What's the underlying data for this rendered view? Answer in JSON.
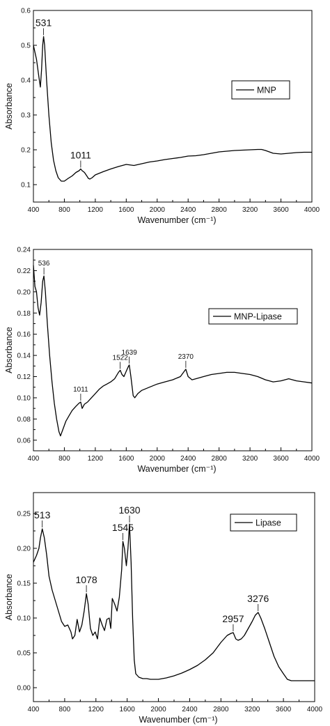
{
  "chart_data": [
    {
      "type": "line",
      "xlabel": "Wavenumber (cm⁻¹)",
      "ylabel": "Absorbance",
      "xlim": [
        400,
        4000
      ],
      "ylim": [
        0.05,
        0.6
      ],
      "x_ticks": [
        400,
        800,
        1200,
        1600,
        2000,
        2400,
        2800,
        3200,
        3600,
        4000
      ],
      "y_ticks": [
        0.1,
        0.2,
        0.3,
        0.4,
        0.5,
        0.6
      ],
      "y_tick_labels": [
        "0.1",
        "0.2",
        "0.3",
        "0.4",
        "0.5",
        "0.6"
      ],
      "legend": "right",
      "series": [
        {
          "name": "MNP",
          "color": "#000000",
          "points": [
            [
              400,
              0.5
            ],
            [
              440,
              0.46
            ],
            [
              470,
              0.41
            ],
            [
              490,
              0.38
            ],
            [
              505,
              0.43
            ],
            [
              520,
              0.5
            ],
            [
              531,
              0.525
            ],
            [
              545,
              0.5
            ],
            [
              570,
              0.4
            ],
            [
              600,
              0.3
            ],
            [
              630,
              0.22
            ],
            [
              660,
              0.17
            ],
            [
              690,
              0.14
            ],
            [
              720,
              0.12
            ],
            [
              760,
              0.11
            ],
            [
              800,
              0.11
            ],
            [
              850,
              0.118
            ],
            [
              900,
              0.125
            ],
            [
              950,
              0.135
            ],
            [
              990,
              0.14
            ],
            [
              1011,
              0.145
            ],
            [
              1030,
              0.14
            ],
            [
              1060,
              0.135
            ],
            [
              1090,
              0.125
            ],
            [
              1110,
              0.118
            ],
            [
              1130,
              0.116
            ],
            [
              1160,
              0.12
            ],
            [
              1200,
              0.128
            ],
            [
              1300,
              0.137
            ],
            [
              1400,
              0.145
            ],
            [
              1500,
              0.152
            ],
            [
              1600,
              0.158
            ],
            [
              1700,
              0.155
            ],
            [
              1800,
              0.16
            ],
            [
              1900,
              0.165
            ],
            [
              2000,
              0.168
            ],
            [
              2100,
              0.172
            ],
            [
              2200,
              0.175
            ],
            [
              2300,
              0.178
            ],
            [
              2400,
              0.182
            ],
            [
              2500,
              0.183
            ],
            [
              2600,
              0.186
            ],
            [
              2700,
              0.19
            ],
            [
              2800,
              0.194
            ],
            [
              2900,
              0.196
            ],
            [
              3000,
              0.198
            ],
            [
              3100,
              0.199
            ],
            [
              3200,
              0.2
            ],
            [
              3300,
              0.201
            ],
            [
              3350,
              0.201
            ],
            [
              3400,
              0.198
            ],
            [
              3500,
              0.19
            ],
            [
              3600,
              0.188
            ],
            [
              3700,
              0.19
            ],
            [
              3800,
              0.192
            ],
            [
              3900,
              0.193
            ],
            [
              4000,
              0.193
            ]
          ]
        }
      ],
      "annotations": [
        {
          "x": 531,
          "y": 0.525,
          "text": "531"
        },
        {
          "x": 1011,
          "y": 0.145,
          "text": "1011"
        }
      ]
    },
    {
      "type": "line",
      "xlabel": "Wavenumber (cm⁻¹)",
      "ylabel": "Absorbance",
      "xlim": [
        400,
        4000
      ],
      "ylim": [
        0.05,
        0.24
      ],
      "x_ticks": [
        400,
        800,
        1200,
        1600,
        2000,
        2400,
        2800,
        3200,
        3600,
        4000
      ],
      "y_ticks": [
        0.06,
        0.08,
        0.1,
        0.12,
        0.14,
        0.16,
        0.18,
        0.2,
        0.22,
        0.24
      ],
      "y_tick_labels": [
        "0.06",
        "0.08",
        "0.10",
        "0.12",
        "0.14",
        "0.16",
        "0.18",
        "0.20",
        "0.22",
        "0.24"
      ],
      "legend": "right",
      "series": [
        {
          "name": "MNP-Lipase",
          "color": "#000000",
          "points": [
            [
              400,
              0.225
            ],
            [
              420,
              0.205
            ],
            [
              440,
              0.2
            ],
            [
              460,
              0.185
            ],
            [
              480,
              0.178
            ],
            [
              500,
              0.19
            ],
            [
              520,
              0.21
            ],
            [
              536,
              0.215
            ],
            [
              555,
              0.2
            ],
            [
              580,
              0.17
            ],
            [
              610,
              0.14
            ],
            [
              640,
              0.115
            ],
            [
              670,
              0.095
            ],
            [
              700,
              0.08
            ],
            [
              730,
              0.068
            ],
            [
              750,
              0.064
            ],
            [
              780,
              0.07
            ],
            [
              820,
              0.078
            ],
            [
              860,
              0.083
            ],
            [
              900,
              0.088
            ],
            [
              950,
              0.092
            ],
            [
              990,
              0.095
            ],
            [
              1011,
              0.096
            ],
            [
              1030,
              0.09
            ],
            [
              1060,
              0.094
            ],
            [
              1100,
              0.096
            ],
            [
              1150,
              0.1
            ],
            [
              1200,
              0.104
            ],
            [
              1250,
              0.108
            ],
            [
              1300,
              0.111
            ],
            [
              1350,
              0.113
            ],
            [
              1400,
              0.115
            ],
            [
              1450,
              0.118
            ],
            [
              1500,
              0.124
            ],
            [
              1522,
              0.126
            ],
            [
              1545,
              0.122
            ],
            [
              1570,
              0.12
            ],
            [
              1600,
              0.125
            ],
            [
              1630,
              0.13
            ],
            [
              1639,
              0.131
            ],
            [
              1660,
              0.12
            ],
            [
              1690,
              0.102
            ],
            [
              1710,
              0.1
            ],
            [
              1750,
              0.104
            ],
            [
              1800,
              0.107
            ],
            [
              1900,
              0.11
            ],
            [
              2000,
              0.113
            ],
            [
              2100,
              0.115
            ],
            [
              2200,
              0.117
            ],
            [
              2300,
              0.12
            ],
            [
              2340,
              0.124
            ],
            [
              2370,
              0.127
            ],
            [
              2400,
              0.12
            ],
            [
              2450,
              0.117
            ],
            [
              2500,
              0.118
            ],
            [
              2600,
              0.12
            ],
            [
              2700,
              0.122
            ],
            [
              2800,
              0.123
            ],
            [
              2900,
              0.124
            ],
            [
              3000,
              0.124
            ],
            [
              3100,
              0.123
            ],
            [
              3200,
              0.122
            ],
            [
              3300,
              0.12
            ],
            [
              3400,
              0.117
            ],
            [
              3500,
              0.115
            ],
            [
              3600,
              0.116
            ],
            [
              3700,
              0.118
            ],
            [
              3800,
              0.116
            ],
            [
              3900,
              0.115
            ],
            [
              4000,
              0.114
            ]
          ]
        }
      ],
      "annotations": [
        {
          "x": 536,
          "y": 0.215,
          "text": "536"
        },
        {
          "x": 1011,
          "y": 0.096,
          "text": "1011"
        },
        {
          "x": 1522,
          "y": 0.126,
          "text": "1522"
        },
        {
          "x": 1639,
          "y": 0.131,
          "text": "1639"
        },
        {
          "x": 2370,
          "y": 0.127,
          "text": "2370"
        }
      ]
    },
    {
      "type": "line",
      "xlabel": "Wavenumber (cm⁻¹)",
      "ylabel": "Absorbance",
      "xlim": [
        400,
        4000
      ],
      "ylim": [
        -0.02,
        0.28
      ],
      "x_ticks": [
        400,
        800,
        1200,
        1600,
        2000,
        2400,
        2800,
        3200,
        3600,
        4000
      ],
      "y_ticks": [
        0.0,
        0.05,
        0.1,
        0.15,
        0.2,
        0.25
      ],
      "y_tick_labels": [
        "0.00",
        "0.05",
        "0.10",
        "0.15",
        "0.20",
        "0.25"
      ],
      "legend": "right",
      "series": [
        {
          "name": "Lipase",
          "color": "#000000",
          "points": [
            [
              400,
              0.18
            ],
            [
              440,
              0.19
            ],
            [
              470,
              0.2
            ],
            [
              490,
              0.215
            ],
            [
              513,
              0.228
            ],
            [
              540,
              0.215
            ],
            [
              570,
              0.19
            ],
            [
              600,
              0.16
            ],
            [
              640,
              0.14
            ],
            [
              680,
              0.125
            ],
            [
              720,
              0.11
            ],
            [
              760,
              0.095
            ],
            [
              800,
              0.088
            ],
            [
              840,
              0.09
            ],
            [
              880,
              0.08
            ],
            [
              900,
              0.07
            ],
            [
              930,
              0.075
            ],
            [
              960,
              0.098
            ],
            [
              990,
              0.08
            ],
            [
              1020,
              0.09
            ],
            [
              1050,
              0.11
            ],
            [
              1078,
              0.135
            ],
            [
              1100,
              0.12
            ],
            [
              1130,
              0.085
            ],
            [
              1160,
              0.075
            ],
            [
              1190,
              0.08
            ],
            [
              1220,
              0.07
            ],
            [
              1250,
              0.1
            ],
            [
              1280,
              0.09
            ],
            [
              1310,
              0.082
            ],
            [
              1340,
              0.098
            ],
            [
              1370,
              0.1
            ],
            [
              1390,
              0.085
            ],
            [
              1410,
              0.128
            ],
            [
              1440,
              0.12
            ],
            [
              1470,
              0.11
            ],
            [
              1500,
              0.13
            ],
            [
              1530,
              0.17
            ],
            [
              1545,
              0.21
            ],
            [
              1565,
              0.2
            ],
            [
              1590,
              0.175
            ],
            [
              1610,
              0.2
            ],
            [
              1630,
              0.235
            ],
            [
              1650,
              0.18
            ],
            [
              1670,
              0.1
            ],
            [
              1690,
              0.04
            ],
            [
              1710,
              0.02
            ],
            [
              1750,
              0.015
            ],
            [
              1800,
              0.013
            ],
            [
              1850,
              0.013
            ],
            [
              1900,
              0.012
            ],
            [
              1950,
              0.012
            ],
            [
              2000,
              0.012
            ],
            [
              2100,
              0.014
            ],
            [
              2200,
              0.017
            ],
            [
              2300,
              0.021
            ],
            [
              2400,
              0.026
            ],
            [
              2500,
              0.032
            ],
            [
              2600,
              0.04
            ],
            [
              2700,
              0.05
            ],
            [
              2800,
              0.065
            ],
            [
              2880,
              0.075
            ],
            [
              2930,
              0.078
            ],
            [
              2957,
              0.079
            ],
            [
              2990,
              0.07
            ],
            [
              3020,
              0.068
            ],
            [
              3060,
              0.07
            ],
            [
              3100,
              0.075
            ],
            [
              3150,
              0.085
            ],
            [
              3200,
              0.095
            ],
            [
              3240,
              0.104
            ],
            [
              3276,
              0.108
            ],
            [
              3310,
              0.1
            ],
            [
              3360,
              0.085
            ],
            [
              3420,
              0.065
            ],
            [
              3480,
              0.045
            ],
            [
              3540,
              0.03
            ],
            [
              3600,
              0.02
            ],
            [
              3650,
              0.012
            ],
            [
              3700,
              0.01
            ],
            [
              3800,
              0.01
            ],
            [
              3900,
              0.01
            ],
            [
              4000,
              0.01
            ]
          ]
        }
      ],
      "annotations": [
        {
          "x": 513,
          "y": 0.228,
          "text": "513"
        },
        {
          "x": 1078,
          "y": 0.135,
          "text": "1078"
        },
        {
          "x": 1545,
          "y": 0.21,
          "text": "1545"
        },
        {
          "x": 1630,
          "y": 0.235,
          "text": "1630"
        },
        {
          "x": 2957,
          "y": 0.079,
          "text": "2957"
        },
        {
          "x": 3276,
          "y": 0.108,
          "text": "3276"
        }
      ]
    }
  ]
}
